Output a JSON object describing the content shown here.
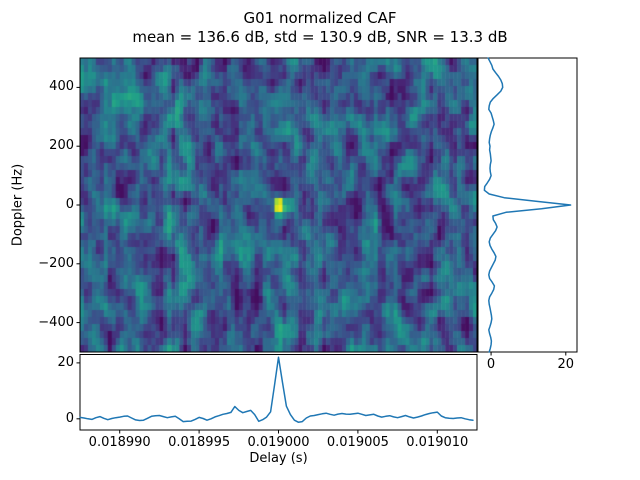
{
  "header": {
    "title": "G01 normalized CAF",
    "stats_line": "mean = 136.6 dB, std = 130.9 dB, SNR = 13.3 dB"
  },
  "axes": {
    "doppler_label": "Doppler (Hz)",
    "delay_label": "Delay (s)",
    "doppler_tick_labels": [
      "400",
      "200",
      "0",
      "−200",
      "−400"
    ],
    "delay_tick_labels": [
      "0.018990",
      "0.018995",
      "0.019000",
      "0.019005",
      "0.019010"
    ],
    "profile_tick_labels": [
      "0",
      "20"
    ]
  },
  "style": {
    "line_color": "#1f77b4",
    "spine_color": "#000000",
    "text_color": "#000000",
    "background": "#ffffff",
    "colormap": "viridis"
  },
  "chart_data": [
    {
      "id": "caf-heatmap",
      "type": "heatmap",
      "title": "G01 normalized CAF",
      "xlabel": "Delay (s)",
      "ylabel": "Doppler (Hz)",
      "xlim": [
        0.0189875,
        0.0190125
      ],
      "ylim": [
        -500,
        500
      ],
      "xticks": [
        0.01899,
        0.018995,
        0.019,
        0.019005,
        0.01901
      ],
      "yticks": [
        400,
        200,
        0,
        -200,
        -400
      ],
      "colormap": "viridis",
      "stats": {
        "mean_db": 136.6,
        "std_db": 130.9,
        "snr_db": 13.3
      },
      "peaks": [
        {
          "delay_s": 0.019,
          "doppler_hz": 0,
          "amplitude": 0.8,
          "sigma_cells_x": 0.9,
          "sigma_cells_y": 0.75
        },
        {
          "delay_s": 0.0189944,
          "doppler_hz": -267,
          "amplitude": 0.17,
          "sigma_cells_x": 1.4,
          "sigma_cells_y": 1.1
        }
      ],
      "noise": {
        "seed": 42,
        "grid_nx": 100,
        "grid_ny": 42,
        "base": 0.07,
        "span": 0.38,
        "stretch": 2.8,
        "texture": 0.1,
        "column_stripe": 0.05
      }
    },
    {
      "id": "delay-profile",
      "type": "line",
      "orientation": "horizontal-bottom",
      "x_start": 0.0189875,
      "x_step": 2.5e-07,
      "ylim": [
        -4,
        23
      ],
      "yticks": [
        0,
        20
      ],
      "values": [
        0.5,
        0.3,
        0.0,
        -0.2,
        0.4,
        0.8,
        0.2,
        -0.3,
        0.1,
        0.4,
        0.6,
        0.9,
        1.0,
        0.3,
        -0.4,
        -0.6,
        -0.5,
        0.2,
        0.9,
        1.1,
        1.2,
        0.8,
        0.4,
        0.7,
        0.9,
        0.0,
        -1.0,
        -0.9,
        -0.8,
        -0.2,
        0.5,
        0.1,
        -0.5,
        0.0,
        0.7,
        1.1,
        1.6,
        1.9,
        2.3,
        4.4,
        3.0,
        2.2,
        2.6,
        3.0,
        1.5,
        -0.9,
        -0.3,
        0.6,
        2.5,
        12.0,
        22.0,
        13.0,
        4.5,
        1.5,
        -0.5,
        -1.2,
        -1.0,
        0.3,
        1.0,
        1.2,
        1.5,
        1.8,
        2.0,
        1.6,
        1.3,
        1.7,
        1.9,
        1.7,
        1.6,
        1.8,
        2.0,
        1.6,
        1.2,
        1.4,
        1.6,
        1.0,
        0.6,
        0.9,
        1.1,
        0.7,
        0.4,
        0.8,
        1.2,
        0.7,
        0.3,
        0.6,
        1.0,
        1.5,
        1.9,
        2.2,
        2.4,
        1.0,
        0.4,
        0.2,
        0.1,
        0.3,
        0.4,
        0.0,
        -0.3,
        -0.5
      ]
    },
    {
      "id": "doppler-profile",
      "type": "line",
      "orientation": "vertical-right",
      "doppler_start": 500,
      "doppler_step": -12.5,
      "xlim": [
        -3.5,
        23
      ],
      "xticks": [
        0,
        20
      ],
      "values": [
        -0.8,
        -0.3,
        0.2,
        0.5,
        1.2,
        2.0,
        2.6,
        3.0,
        3.1,
        2.6,
        1.6,
        0.6,
        -0.2,
        -0.5,
        -0.6,
        0.0,
        0.3,
        0.6,
        0.8,
        0.5,
        0.1,
        -0.2,
        -0.4,
        -0.5,
        -0.3,
        -0.4,
        -0.2,
        -0.1,
        0.0,
        -0.2,
        -0.3,
        -0.2,
        0.0,
        -0.4,
        -1.0,
        -1.7,
        -1.8,
        -0.5,
        3.5,
        12.0,
        21.3,
        13.5,
        4.0,
        0.5,
        0.6,
        1.2,
        1.6,
        1.2,
        0.5,
        -0.2,
        -0.5,
        -0.3,
        0.2,
        0.8,
        1.3,
        1.1,
        0.6,
        0.1,
        -0.4,
        -0.6,
        -0.4,
        0.3,
        0.9,
        0.7,
        0.2,
        -0.4,
        -0.6,
        -0.5,
        -0.3,
        -0.1,
        0.1,
        0.2,
        0.0,
        -0.3,
        -0.6,
        -0.4,
        -0.1,
        0.1,
        0.0,
        -0.2,
        -0.5
      ]
    }
  ]
}
